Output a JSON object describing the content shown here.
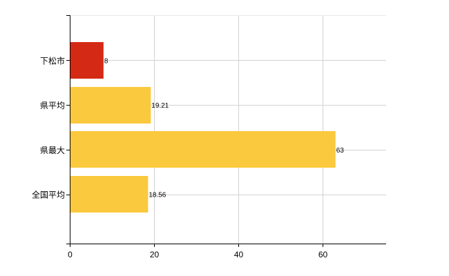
{
  "chart_data": {
    "type": "bar",
    "orientation": "horizontal",
    "title": "",
    "xlabel": "",
    "ylabel": "",
    "categories": [
      "下松市",
      "県平均",
      "県最大",
      "全国平均"
    ],
    "series": [
      {
        "values": [
          8,
          19.21,
          63,
          18.56
        ],
        "value_labels": [
          "8",
          "19.21",
          "63",
          "18.56"
        ],
        "colors": [
          "#d42a15",
          "#fbc93d",
          "#fbc93d",
          "#fbc93d"
        ]
      }
    ],
    "xlim": [
      0,
      75
    ],
    "xticks": [
      0,
      20,
      40,
      60
    ],
    "xtick_labels": [
      "0",
      "20",
      "40",
      "60"
    ],
    "grid": true,
    "legend": "none"
  }
}
